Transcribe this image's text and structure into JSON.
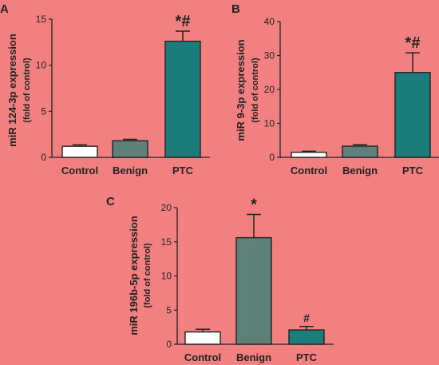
{
  "colors": {
    "background": "#f28080",
    "axis": "#222222",
    "control_fill": "#ffffff",
    "benign_fill": "#5f7f7a",
    "ptc_fill": "#1b7c7a"
  },
  "chart_data": [
    {
      "panel": "A",
      "type": "bar",
      "ylabel": "miR 124-3p expression",
      "ylabel_sub": "(fold of control)",
      "categories": [
        "Control",
        "Benign",
        "PTC"
      ],
      "values": [
        1.2,
        1.8,
        12.6
      ],
      "errors": [
        0.15,
        0.15,
        1.1
      ],
      "annotations": [
        "",
        "",
        "*#"
      ],
      "ylim": [
        0,
        15
      ],
      "yticks": [
        "0",
        "5",
        "10",
        "15"
      ]
    },
    {
      "panel": "B",
      "type": "bar",
      "ylabel": "miR 9-3p expression",
      "ylabel_sub": "(fold of control)",
      "categories": [
        "Control",
        "Benign",
        "PTC"
      ],
      "values": [
        1.5,
        3.3,
        25.0
      ],
      "errors": [
        0.3,
        0.4,
        5.8
      ],
      "annotations": [
        "",
        "",
        "*#"
      ],
      "ylim": [
        0,
        40
      ],
      "yticks": [
        "0",
        "10",
        "20",
        "30",
        "40"
      ]
    },
    {
      "panel": "C",
      "type": "bar",
      "ylabel": "miR 196b-5p expression",
      "ylabel_sub": "(fold of control)",
      "categories": [
        "Control",
        "Benign",
        "PTC"
      ],
      "values": [
        1.8,
        15.6,
        2.1
      ],
      "errors": [
        0.4,
        3.4,
        0.5
      ],
      "annotations": [
        "",
        "*",
        "#"
      ],
      "ylim": [
        0,
        20
      ],
      "yticks": [
        "0",
        "5",
        "10",
        "15",
        "20"
      ]
    }
  ]
}
